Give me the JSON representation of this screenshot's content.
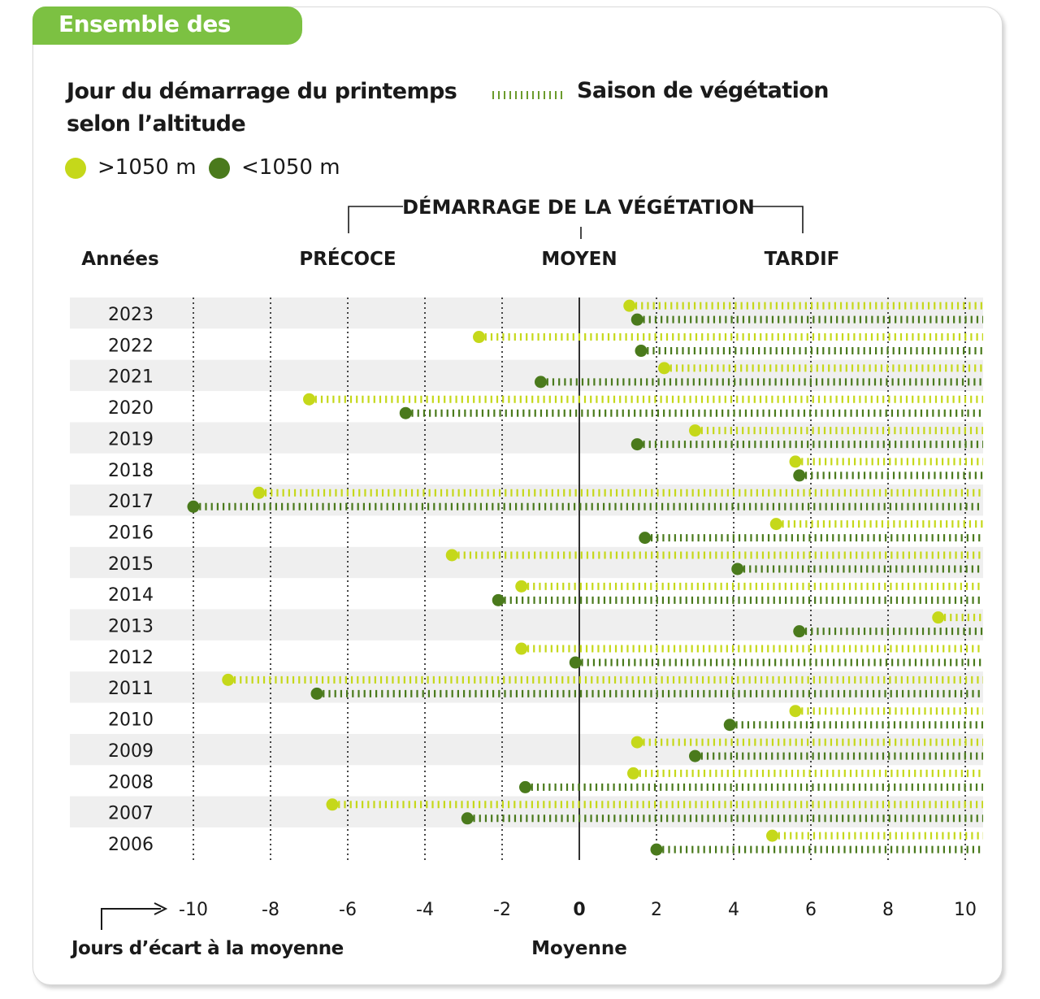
{
  "tag": "Ensemble des Alpes",
  "title_line1": "Jour du démarrage du printemps",
  "title_line2": "selon l’altitude",
  "saison_label": "Saison de végétation",
  "legend": [
    {
      "label": ">1050 m",
      "color": "#c5d81a"
    },
    {
      "label": "<1050 m",
      "color": "#4a7a1c"
    }
  ],
  "chart_data": {
    "type": "scatter",
    "title": "Jour du démarrage du printemps selon l’altitude",
    "xlabel": "Jours d’écart à la moyenne",
    "ylabel": "Années",
    "xlim": [
      -10,
      10
    ],
    "x_ticks": [
      "-10",
      "-8",
      "-6",
      "-4",
      "-2",
      "0",
      "2",
      "4",
      "6",
      "8",
      "10"
    ],
    "mean_label": "Moyenne",
    "group_label": "DÉMARRAGE DE LA VÉGÉTATION",
    "category_labels": {
      "early": "PRÉCOCE",
      "mean": "MOYEN",
      "late": "TARDIF"
    },
    "categories": [
      "2023",
      "2022",
      "2021",
      "2020",
      "2019",
      "2018",
      "2017",
      "2016",
      "2015",
      "2014",
      "2013",
      "2012",
      "2011",
      "2010",
      "2009",
      "2008",
      "2007",
      "2006"
    ],
    "series": [
      {
        "name": ">1050 m",
        "color": "#c5d81a",
        "values": [
          1.3,
          -2.6,
          2.2,
          -7.0,
          3.0,
          5.6,
          -8.3,
          5.1,
          -3.3,
          -1.5,
          9.3,
          -1.5,
          -9.1,
          5.6,
          1.5,
          1.4,
          -6.4,
          5.0
        ]
      },
      {
        "name": "<1050 m",
        "color": "#4a7a1c",
        "values": [
          1.5,
          1.6,
          -1.0,
          -4.5,
          1.5,
          5.7,
          -10.0,
          1.7,
          4.1,
          -2.1,
          5.7,
          -0.1,
          -6.8,
          3.9,
          3.0,
          -1.4,
          -2.9,
          2.0
        ]
      }
    ]
  }
}
